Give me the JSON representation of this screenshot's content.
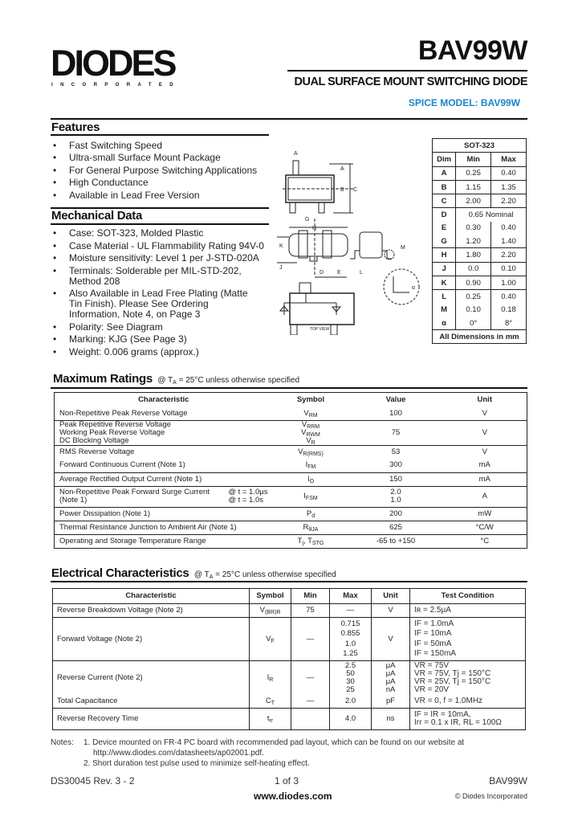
{
  "header": {
    "logo": "DIODES",
    "logo_sub": "INCORPORATED",
    "part_number": "BAV99W",
    "subtitle": "DUAL SURFACE MOUNT SWITCHING DIODE",
    "spice_model": "SPICE MODEL:  BAV99W",
    "spice_color": "#1b86c8"
  },
  "features": {
    "title": "Features",
    "items": [
      "Fast Switching Speed",
      "Ultra-small Surface Mount Package",
      "For General Purpose Switching Applications",
      "High Conductance",
      "Available in Lead Free Version"
    ]
  },
  "mechanical": {
    "title": "Mechanical Data",
    "items": [
      "Case: SOT-323, Molded Plastic",
      "Case Material - UL Flammability Rating 94V-0",
      "Moisture sensitivity:  Level 1 per J-STD-020A",
      "Terminals: Solderable per MIL-STD-202, Method 208",
      "Also Available in Lead Free Plating (Matte Tin Finish). Please See Ordering Information, Note 4, on Page 3",
      "Polarity: See Diagram",
      "Marking:  KJG (See Page 3)",
      "Weight: 0.006 grams (approx.)"
    ]
  },
  "diagram": {
    "labels": [
      "A",
      "B",
      "C",
      "G",
      "H",
      "K",
      "J",
      "D",
      "E",
      "L",
      "M",
      "α"
    ],
    "top_view": "TOP VIEW"
  },
  "package_table": {
    "title": "SOT-323",
    "headers": [
      "Dim",
      "Min",
      "Max"
    ],
    "rows": [
      [
        "A",
        "0.25",
        "0.40"
      ],
      [
        "B",
        "1.15",
        "1.35"
      ],
      [
        "C",
        "2.00",
        "2.20"
      ],
      [
        "D",
        "0.65 Nominal",
        ""
      ],
      [
        "E",
        "0.30",
        "0.40"
      ],
      [
        "G",
        "1.20",
        "1.40"
      ],
      [
        "H",
        "1.80",
        "2.20"
      ],
      [
        "J",
        "0.0",
        "0.10"
      ],
      [
        "K",
        "0.90",
        "1.00"
      ],
      [
        "L",
        "0.25",
        "0.40"
      ],
      [
        "M",
        "0.10",
        "0.18"
      ],
      [
        "α",
        "0°",
        "8°"
      ]
    ],
    "footer": "All Dimensions in mm"
  },
  "max_ratings": {
    "title": "Maximum Ratings",
    "condition": "@ T",
    "condition_sub": "A",
    "condition_rest": " = 25°C unless otherwise specified",
    "headers": [
      "Characteristic",
      "Symbol",
      "Value",
      "Unit"
    ],
    "rows": [
      {
        "char": "Non-Repetitive Peak Reverse Voltage",
        "sym": [
          [
            "V",
            "RM"
          ]
        ],
        "value": "100",
        "unit": "V"
      },
      {
        "char": "Peak Repetitive Reverse Voltage\nWorking Peak Reverse Voltage\nDC Blocking Voltage",
        "sym": [
          [
            "V",
            "RRM"
          ],
          [
            "V",
            "RWM"
          ],
          [
            "V",
            "R"
          ]
        ],
        "value": "75",
        "unit": "V"
      },
      {
        "char": "RMS Reverse Voltage",
        "sym": [
          [
            "V",
            "R(RMS)"
          ]
        ],
        "value": "53",
        "unit": "V"
      },
      {
        "char": "Forward Continuous Current (Note 1)",
        "sym": [
          [
            "I",
            "FM"
          ]
        ],
        "value": "300",
        "unit": "mA"
      },
      {
        "char": "Average Rectified Output Current (Note 1)",
        "sym": [
          [
            "I",
            "O"
          ]
        ],
        "value": "150",
        "unit": "mA"
      },
      {
        "char": "Non-Repetitive Peak Forward Surge Current\n(Note 1)",
        "extra": "@ t = 1.0μs\n@ t = 1.0s",
        "sym": [
          [
            "I",
            "FSM"
          ]
        ],
        "value": "2.0\n1.0",
        "unit": "A"
      },
      {
        "char": "Power Dissipation (Note 1)",
        "sym": [
          [
            "P",
            "d"
          ]
        ],
        "value": "200",
        "unit": "mW"
      },
      {
        "char": "Thermal Resistance Junction to Ambient Air (Note 1)",
        "sym": [
          [
            "R",
            "θJA"
          ]
        ],
        "value": "625",
        "unit": "°C/W"
      },
      {
        "char": "Operating and Storage Temperature Range",
        "sym": [
          [
            "T",
            "j"
          ],
          [
            ", T",
            "STG"
          ]
        ],
        "value": "-65 to +150",
        "unit": "°C"
      }
    ]
  },
  "electrical": {
    "title": "Electrical Characteristics",
    "condition": "@ T",
    "condition_sub": "A",
    "condition_rest": " = 25°C unless otherwise specified",
    "headers": [
      "Characteristic",
      "Symbol",
      "Min",
      "Max",
      "Unit",
      "Test Condition"
    ],
    "rows": [
      {
        "char": "Reverse Breakdown Voltage (Note 2)",
        "sym": [
          [
            "V",
            "(BR)R"
          ]
        ],
        "min": "75",
        "max": "—",
        "unit": "V",
        "cond": "Iʀ = 2.5μA"
      },
      {
        "char": "Forward Voltage (Note 2)",
        "sym": [
          [
            "V",
            "F"
          ]
        ],
        "min": "—",
        "max": "0.715\n0.855\n1.0\n1.25",
        "unit": "V",
        "cond": "IF = 1.0mA\nIF = 10mA\nIF = 50mA\nIF = 150mA"
      },
      {
        "char": "Reverse Current (Note 2)",
        "sym": [
          [
            "I",
            "R"
          ]
        ],
        "min": "—",
        "max": "2.5\n50\n30\n25",
        "unit": "μA\nμA\nμA\nnA",
        "cond": "VR = 75V\nVR = 75V, Tj = 150°C\nVR = 25V, Tj = 150°C\nVR = 20V"
      },
      {
        "char": "Total Capacitance",
        "sym": [
          [
            "C",
            "T"
          ]
        ],
        "min": "—",
        "max": "2.0",
        "unit": "pF",
        "cond": "VR = 0, f = 1.0MHz"
      },
      {
        "char": "Reverse Recovery Time",
        "sym": [
          [
            "t",
            "rr"
          ]
        ],
        "min": "",
        "max": "4.0",
        "unit": "ns",
        "cond": "IF = IR = 10mA,\nIrr = 0.1 x IR, RL = 100Ω"
      }
    ]
  },
  "notes": {
    "label": "Notes:",
    "items": [
      "1. Device mounted on FR-4 PC board with recommended pad layout, which can be found on our website at",
      "http://www.diodes.com/datasheets/ap02001.pdf.",
      "2. Short duration test pulse used to minimize self-heating effect."
    ]
  },
  "footer": {
    "doc_number": "DS30045 Rev. 3 - 2",
    "page": "1 of 3",
    "part": "BAV99W",
    "website": "www.diodes.com",
    "copyright": "© Diodes Incorporated"
  }
}
